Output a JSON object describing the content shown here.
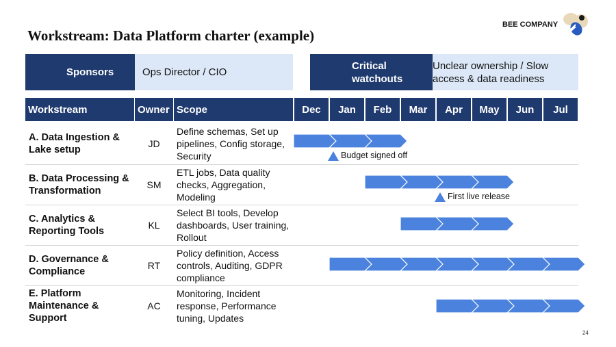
{
  "header": {
    "title": "Workstream: Data Platform charter (example)",
    "company": "BEE COMPANY",
    "page_number": "24"
  },
  "sponsors": {
    "label": "Sponsors",
    "value": "Ops Director / CIO"
  },
  "watchouts": {
    "label": "Critical watchouts",
    "value": "Unclear ownership / Slow access & data readiness"
  },
  "table": {
    "columns": [
      "Workstream",
      "Owner",
      "Scope"
    ],
    "months": [
      "Dec",
      "Jan",
      "Feb",
      "Mar",
      "Apr",
      "May",
      "Jun",
      "Jul"
    ],
    "rows": [
      {
        "name": "A. Data Ingestion & Lake setup",
        "owner": "JD",
        "scope": "Define schemas, Set up pipelines, Config storage, Security",
        "span": [
          "Dec",
          "Feb"
        ],
        "milestone": {
          "label": "Budget signed off",
          "month": "Jan"
        }
      },
      {
        "name": "B. Data Processing & Transformation",
        "owner": "SM",
        "scope": "ETL jobs, Data quality checks, Aggregation, Modeling",
        "span": [
          "Feb",
          "May"
        ],
        "milestone": {
          "label": "First live release",
          "month": "Apr"
        }
      },
      {
        "name": "C. Analytics & Reporting Tools",
        "owner": "KL",
        "scope": "Select BI tools, Develop dashboards, User training, Rollout",
        "span": [
          "Mar",
          "May"
        ]
      },
      {
        "name": "D. Governance & Compliance",
        "owner": "RT",
        "scope": "Policy definition, Access controls, Auditing, GDPR compliance",
        "span": [
          "Jan",
          "Jul"
        ]
      },
      {
        "name": "E. Platform Maintenance & Support",
        "owner": "AC",
        "scope": "Monitoring, Incident response, Performance tuning, Updates",
        "span": [
          "Apr",
          "Jul"
        ]
      }
    ]
  }
}
